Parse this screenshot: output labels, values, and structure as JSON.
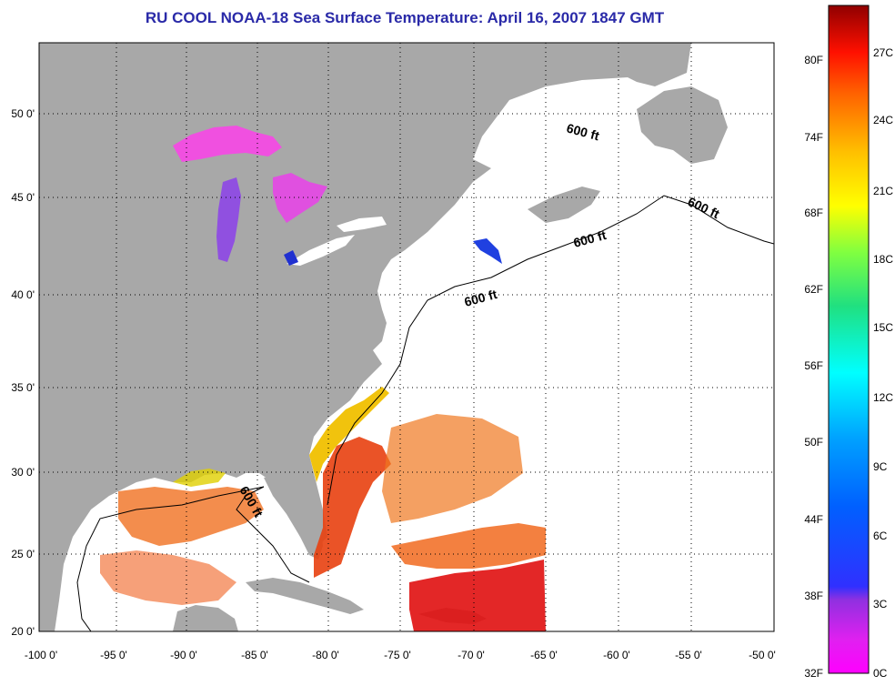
{
  "title": "RU COOL  NOAA-18  Sea Surface Temperature:  April 16, 2007 1847 GMT",
  "map": {
    "lat_labels": [
      "50 0'",
      "45 0'",
      "40 0'",
      "35 0'",
      "30 0'",
      "25 0'",
      "20 0'"
    ],
    "lon_labels": [
      "-100 0'",
      "-95 0'",
      "-90 0'",
      "-85 0'",
      "-80 0'",
      "-75 0'",
      "-70 0'",
      "-65 0'",
      "-60 0'",
      "-55 0'",
      "-50 0'"
    ],
    "lat_range": [
      20,
      52
    ],
    "lon_range": [
      -100,
      -50
    ],
    "grid": "dotted",
    "isobath_label": "600 ft",
    "colors": {
      "land": "#a8a8a8",
      "ocean_nodata": "#ffffff"
    }
  },
  "colorbar": {
    "fahrenheit_labels": [
      "80F",
      "74F",
      "68F",
      "62F",
      "56F",
      "50F",
      "44F",
      "38F",
      "32F"
    ],
    "celsius_labels": [
      "27C",
      "24C",
      "21C",
      "18C",
      "15C",
      "12C",
      "9C",
      "6C",
      "3C",
      "0C"
    ]
  }
}
